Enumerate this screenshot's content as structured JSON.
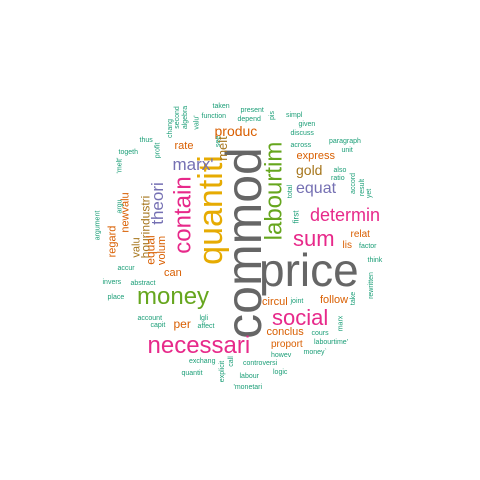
{
  "colors": {
    "gray": "#666666",
    "green": "#66a61e",
    "pink": "#e7298a",
    "purple": "#7570b3",
    "orange": "#d95f02",
    "gold": "#e6ab02",
    "teal": "#1b9e77",
    "brown": "#a6761d"
  },
  "words": [
    {
      "text": "commod",
      "color": "gray"
    },
    {
      "text": "price",
      "color": "gray"
    },
    {
      "text": "quantiti",
      "color": "gold"
    },
    {
      "text": "labourtim",
      "color": "green"
    },
    {
      "text": "contain",
      "color": "pink"
    },
    {
      "text": "money",
      "color": "green"
    },
    {
      "text": "necessari",
      "color": "pink"
    },
    {
      "text": "social",
      "color": "pink"
    },
    {
      "text": "sum",
      "color": "pink"
    },
    {
      "text": "determin",
      "color": "pink"
    },
    {
      "text": "equat",
      "color": "purple"
    },
    {
      "text": "marx'",
      "color": "purple"
    },
    {
      "text": "theori",
      "color": "purple"
    },
    {
      "text": "produc",
      "color": "orange"
    },
    {
      "text": "melt",
      "color": "brown"
    },
    {
      "text": "gold",
      "color": "brown"
    },
    {
      "text": "express",
      "color": "orange"
    },
    {
      "text": "hourindustri",
      "color": "brown"
    },
    {
      "text": "equal",
      "color": "orange"
    },
    {
      "text": "valu",
      "color": "brown"
    },
    {
      "text": "newvalu",
      "color": "orange"
    },
    {
      "text": "regard",
      "color": "orange"
    },
    {
      "text": "volum",
      "color": "orange"
    },
    {
      "text": "can",
      "color": "orange"
    },
    {
      "text": "per",
      "color": "orange"
    },
    {
      "text": "rate",
      "color": "orange"
    },
    {
      "text": "follow",
      "color": "orange"
    },
    {
      "text": "circul",
      "color": "orange"
    },
    {
      "text": "conclus",
      "color": "orange"
    },
    {
      "text": "proport",
      "color": "orange"
    },
    {
      "text": "relat",
      "color": "orange"
    },
    {
      "text": "lis",
      "color": "orange"
    },
    {
      "text": "first",
      "color": "teal"
    },
    {
      "text": "total",
      "color": "teal"
    },
    {
      "text": "taken",
      "color": "teal"
    },
    {
      "text": "present",
      "color": "teal"
    },
    {
      "text": "function",
      "color": "teal"
    },
    {
      "text": "depend",
      "color": "teal"
    },
    {
      "text": "simpl",
      "color": "teal"
    },
    {
      "text": "given",
      "color": "teal"
    },
    {
      "text": "discuss",
      "color": "teal"
    },
    {
      "text": "across",
      "color": "teal"
    },
    {
      "text": "paragraph",
      "color": "teal"
    },
    {
      "text": "unit",
      "color": "teal"
    },
    {
      "text": "also",
      "color": "teal"
    },
    {
      "text": "ratio",
      "color": "teal"
    },
    {
      "text": "accord",
      "color": "teal"
    },
    {
      "text": "result",
      "color": "teal"
    },
    {
      "text": "yet",
      "color": "teal"
    },
    {
      "text": "factor",
      "color": "teal"
    },
    {
      "text": "think",
      "color": "teal"
    },
    {
      "text": "rewritten",
      "color": "teal"
    },
    {
      "text": "take",
      "color": "teal"
    },
    {
      "text": "cours",
      "color": "teal"
    },
    {
      "text": "marx",
      "color": "teal"
    },
    {
      "text": "labourtime'",
      "color": "teal"
    },
    {
      "text": "howev",
      "color": "teal"
    },
    {
      "text": "money`",
      "color": "teal"
    },
    {
      "text": "controversi",
      "color": "teal"
    },
    {
      "text": "logic",
      "color": "teal"
    },
    {
      "text": "labour",
      "color": "teal"
    },
    {
      "text": "'monetari",
      "color": "teal"
    },
    {
      "text": "explicit",
      "color": "teal"
    },
    {
      "text": "call",
      "color": "teal"
    },
    {
      "text": "joint",
      "color": "teal"
    },
    {
      "text": "exchang",
      "color": "teal"
    },
    {
      "text": "quantit",
      "color": "teal"
    },
    {
      "text": "affect",
      "color": "teal"
    },
    {
      "text": "lgli",
      "color": "teal"
    },
    {
      "text": "account",
      "color": "teal"
    },
    {
      "text": "capit",
      "color": "teal"
    },
    {
      "text": "place",
      "color": "teal"
    },
    {
      "text": "abstract",
      "color": "teal"
    },
    {
      "text": "invers",
      "color": "teal"
    },
    {
      "text": "accur",
      "color": "teal"
    },
    {
      "text": "argument",
      "color": "teal"
    },
    {
      "text": "argu",
      "color": "teal"
    },
    {
      "text": "togeth",
      "color": "teal"
    },
    {
      "text": "'melt'",
      "color": "teal"
    },
    {
      "text": "thus",
      "color": "teal"
    },
    {
      "text": "profit",
      "color": "teal"
    },
    {
      "text": "chang",
      "color": "teal"
    },
    {
      "text": "second",
      "color": "teal"
    },
    {
      "text": "algebra",
      "color": "teal"
    },
    {
      "text": "valu'",
      "color": "teal"
    },
    {
      "text": "see",
      "color": "teal"
    },
    {
      "text": "pis",
      "color": "teal"
    }
  ]
}
